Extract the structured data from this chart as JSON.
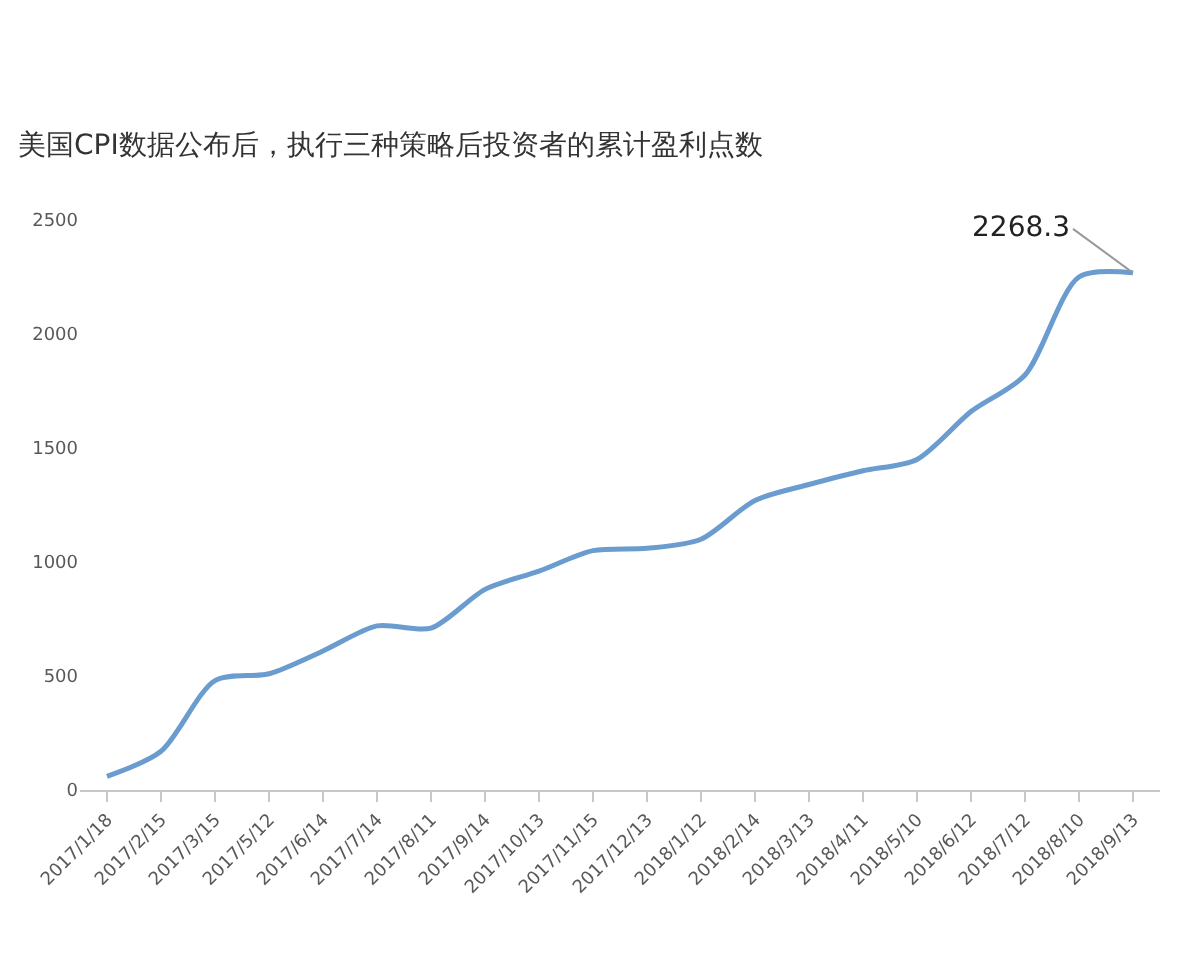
{
  "chart_data": {
    "type": "line",
    "title": "美国CPI数据公布后，执行三种策略后投资者的累计盈利点数",
    "categories": [
      "2017/1/18",
      "2017/2/15",
      "2017/3/15",
      "2017/5/12",
      "2017/6/14",
      "2017/7/14",
      "2017/8/11",
      "2017/9/14",
      "2017/10/13",
      "2017/11/15",
      "2017/12/13",
      "2018/1/12",
      "2018/2/14",
      "2018/3/13",
      "2018/4/11",
      "2018/5/10",
      "2018/6/12",
      "2018/7/12",
      "2018/8/10",
      "2018/9/13"
    ],
    "series": [
      {
        "color": "#6a9ccf",
        "values": [
          60,
          170,
          480,
          510,
          610,
          720,
          710,
          880,
          960,
          1050,
          1060,
          1100,
          1270,
          1340,
          1400,
          1450,
          1660,
          1820,
          2250,
          2268.3
        ]
      }
    ],
    "ylim": [
      0,
      2500
    ],
    "yticks": [
      0,
      500,
      1000,
      1500,
      2000,
      2500
    ],
    "marker": "none",
    "line_style": "solid",
    "annotations": [
      {
        "text": "2268.3",
        "x": "2018/9/13",
        "y": 2268.3
      }
    ]
  }
}
